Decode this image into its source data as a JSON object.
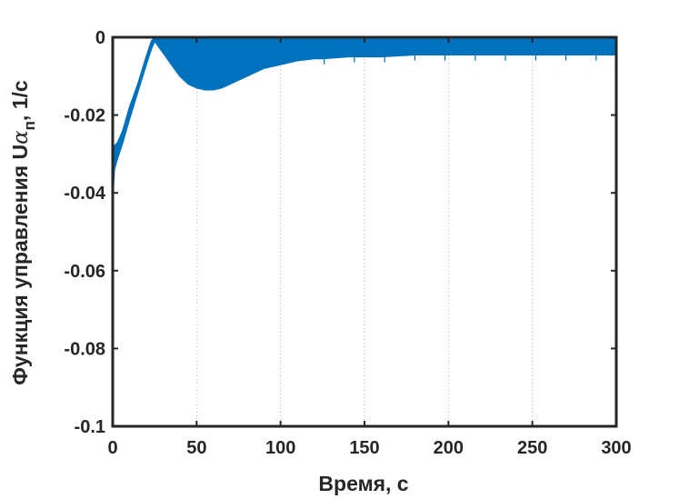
{
  "chart_data": {
    "type": "line",
    "title": "",
    "xlabel": "Время, с",
    "ylabel": {
      "main": "Функция управления U",
      "symbol": "α",
      "subscript": "п",
      "unit": ", 1/с"
    },
    "xlim": [
      0,
      300
    ],
    "ylim": [
      -0.1,
      0
    ],
    "x_ticks": [
      0,
      50,
      100,
      150,
      200,
      250,
      300
    ],
    "y_ticks": [
      0,
      -0.02,
      -0.04,
      -0.06,
      -0.08,
      -0.1
    ],
    "x_tick_labels": [
      "0",
      "50",
      "100",
      "150",
      "200",
      "250",
      "300"
    ],
    "y_tick_labels": [
      "0",
      "-0.02",
      "-0.04",
      "-0.06",
      "-0.08",
      "-0.1"
    ],
    "grid": "vertical dotted",
    "line_color": "#0072BD",
    "series": [
      {
        "x": [
          0,
          1,
          3,
          6,
          10,
          15,
          20,
          23,
          25,
          30,
          35,
          40,
          45,
          50,
          55,
          60,
          65,
          70,
          80,
          90,
          100,
          110,
          120,
          125,
          140,
          160,
          180,
          200,
          220,
          240,
          260,
          280,
          300
        ],
        "lower": [
          -0.042,
          -0.034,
          -0.031,
          -0.027,
          -0.021,
          -0.014,
          -0.007,
          -0.003,
          -0.001,
          -0.004,
          -0.007,
          -0.01,
          -0.012,
          -0.013,
          -0.0135,
          -0.0135,
          -0.013,
          -0.012,
          -0.01,
          -0.008,
          -0.007,
          -0.006,
          -0.0055,
          -0.0055,
          -0.005,
          -0.005,
          -0.0045,
          -0.0045,
          -0.0045,
          -0.0045,
          -0.0045,
          -0.0045,
          -0.0045
        ],
        "upper": [
          -0.028,
          -0.028,
          -0.027,
          -0.024,
          -0.018,
          -0.012,
          -0.005,
          -0.001,
          0,
          0,
          0,
          0,
          0,
          0,
          0,
          0,
          0,
          0,
          0,
          -0.0005,
          -0.0005,
          -0.0005,
          -0.0005,
          -0.0005,
          -0.0005,
          -0.0005,
          -0.0005,
          -0.0005,
          -0.0005,
          -0.0005,
          -0.0005,
          -0.0005,
          -0.0005
        ]
      }
    ]
  }
}
